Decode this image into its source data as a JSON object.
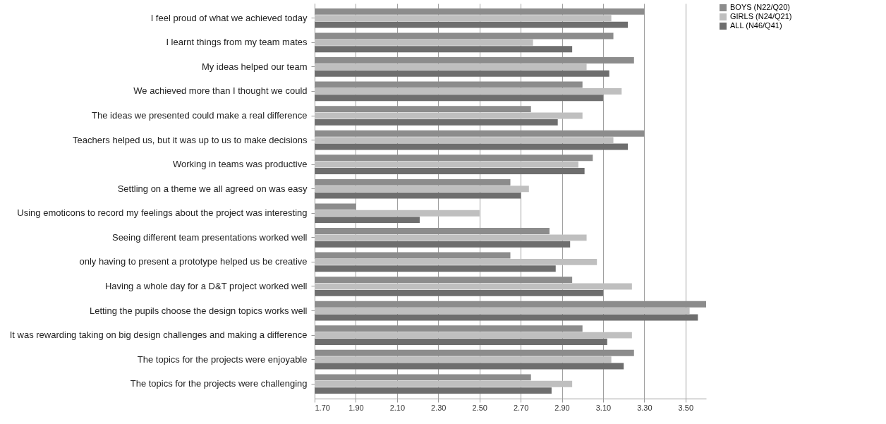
{
  "chart_data": {
    "type": "bar",
    "orientation": "horizontal",
    "categories": [
      "I feel proud of what we achieved today",
      "I learnt things from my team mates",
      "My ideas helped our team",
      "We achieved more than I thought we could",
      "The ideas we presented could make a real difference",
      "Teachers helped us, but it was up to us to make decisions",
      "Working in teams was productive",
      "Settling on a theme we all agreed on was easy",
      "Using emoticons to record my feelings about the project was interesting",
      "Seeing different team presentations worked well",
      "only having to present a prototype helped us be creative",
      "Having a whole day for a D&T project worked well",
      "Letting the pupils choose the design topics works well",
      "It was rewarding taking on big design challenges and  making a  difference",
      "The topics for the projects were enjoyable",
      "The topics for the projects were challenging"
    ],
    "series": [
      {
        "name": "BOYS (N22/Q20)",
        "color": "#8c8c8c",
        "values": [
          3.3,
          3.15,
          3.25,
          3.0,
          2.75,
          3.3,
          3.05,
          2.65,
          1.9,
          2.84,
          2.65,
          2.95,
          3.6,
          3.0,
          3.25,
          2.75
        ]
      },
      {
        "name": "GIRLS (N24/Q21)",
        "color": "#bfbfbf",
        "values": [
          3.14,
          2.76,
          3.02,
          3.19,
          3.0,
          3.15,
          2.98,
          2.74,
          2.5,
          3.02,
          3.07,
          3.24,
          3.52,
          3.24,
          3.14,
          2.95
        ]
      },
      {
        "name": "ALL (N46/Q41)",
        "color": "#6e6e6e",
        "values": [
          3.22,
          2.95,
          3.13,
          3.1,
          2.88,
          3.22,
          3.01,
          2.7,
          2.21,
          2.94,
          2.87,
          3.1,
          3.56,
          3.12,
          3.2,
          2.85
        ]
      }
    ],
    "xlim": [
      1.7,
      3.6
    ],
    "xticks": [
      {
        "value": 1.7,
        "label": "1.70"
      },
      {
        "value": 1.9,
        "label": "1.90"
      },
      {
        "value": 2.1,
        "label": "2.10"
      },
      {
        "value": 2.3,
        "label": "2.30"
      },
      {
        "value": 2.5,
        "label": "2.50"
      },
      {
        "value": 2.7,
        "label": "2.70"
      },
      {
        "value": 2.9,
        "label": "2.90"
      },
      {
        "value": 3.1,
        "label": "3.10"
      },
      {
        "value": 3.3,
        "label": "3.30"
      },
      {
        "value": 3.5,
        "label": "3.50"
      }
    ],
    "grid": "x",
    "legend": "right"
  }
}
